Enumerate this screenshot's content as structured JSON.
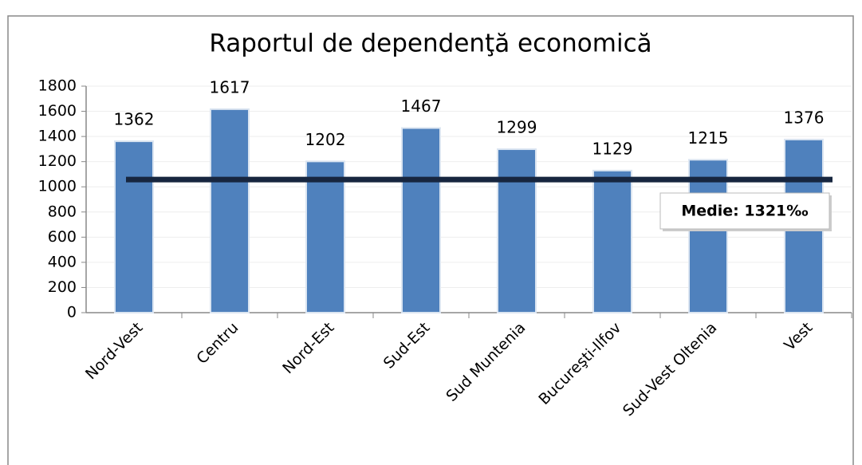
{
  "chart_data": {
    "type": "bar",
    "title": "Raportul de dependenţă economică",
    "categories": [
      "Nord-Vest",
      "Centru",
      "Nord-Est",
      "Sud-Est",
      "Sud Muntenia",
      "Bucureşti-Ilfov",
      "Sud-Vest Oltenia",
      "Vest"
    ],
    "values": [
      1362,
      1617,
      1202,
      1467,
      1299,
      1129,
      1215,
      1376
    ],
    "color": "#4f81bd",
    "ylim": [
      0,
      1800
    ],
    "yticks": [
      0,
      200,
      400,
      600,
      800,
      1000,
      1200,
      1400,
      1600,
      1800
    ],
    "grid": true,
    "reference_line": {
      "value": 1058,
      "color": "#17263f"
    },
    "annotation": "Medie: 1321‰"
  }
}
